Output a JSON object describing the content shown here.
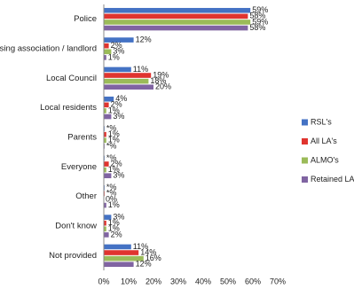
{
  "chart_data": {
    "type": "hbar",
    "categories": [
      "Police",
      "Housing association / landlord",
      "Local Council",
      "Local residents",
      "Parents",
      "Everyone",
      "Other",
      "Don't know",
      "Not provided"
    ],
    "series": [
      {
        "name": "RSL's",
        "color": "#4472c4",
        "values": [
          59,
          12,
          11,
          4,
          0.3,
          0.3,
          0.3,
          3,
          11
        ],
        "value_labels": [
          "59%",
          "12%",
          "11%",
          "4%",
          "*%",
          "*%",
          "*%",
          "3%",
          "11%"
        ]
      },
      {
        "name": "All LA's",
        "color": "#e0342f",
        "values": [
          58,
          2,
          19,
          2,
          1,
          2,
          0.3,
          1,
          14
        ],
        "value_labels": [
          "58%",
          "2%",
          "19%",
          "2%",
          "1%",
          "2%",
          "*%",
          "1%",
          "14%"
        ]
      },
      {
        "name": "ALMO's",
        "color": "#9bbb59",
        "values": [
          59,
          3,
          18,
          1,
          1,
          1,
          0,
          1,
          16
        ],
        "value_labels": [
          "59%",
          "3%",
          "18%",
          "1%",
          "1%",
          "1%",
          "0%",
          "1%",
          "16%"
        ]
      },
      {
        "name": "Retained LA's",
        "color": "#8064a2",
        "values": [
          58,
          1,
          20,
          3,
          0.3,
          3,
          1,
          2,
          12
        ],
        "value_labels": [
          "58%",
          "1%",
          "20%",
          "3%",
          "*%",
          "3%",
          "1%",
          "2%",
          "12%"
        ]
      }
    ],
    "xlim": [
      0,
      70
    ],
    "xticks": [
      {
        "value": 0,
        "label": "0%"
      },
      {
        "value": 10,
        "label": "10%"
      },
      {
        "value": 20,
        "label": "20%"
      },
      {
        "value": 30,
        "label": "30%"
      },
      {
        "value": 40,
        "label": "40%"
      },
      {
        "value": 50,
        "label": "50%"
      },
      {
        "value": 60,
        "label": "60%"
      },
      {
        "value": 70,
        "label": "70%"
      }
    ],
    "legend": "right"
  }
}
